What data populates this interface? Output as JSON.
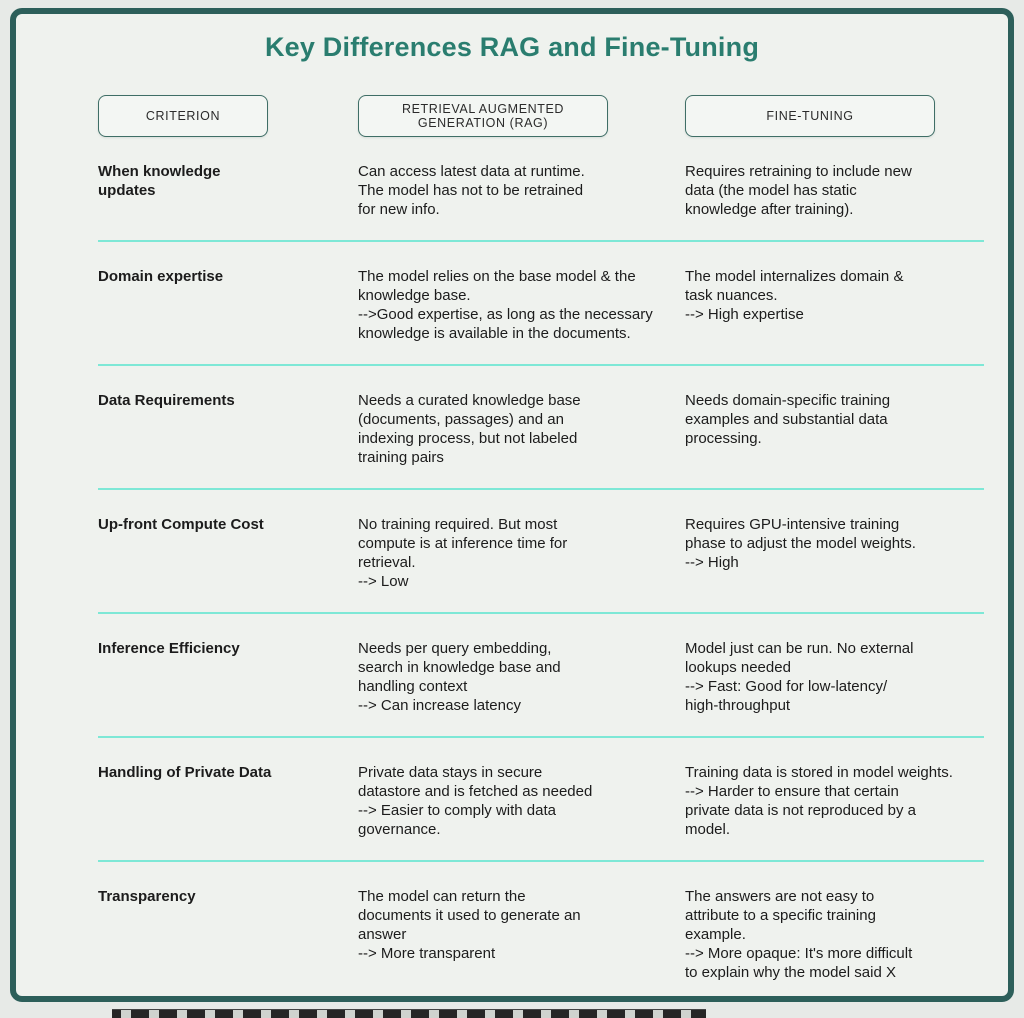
{
  "colors": {
    "border": "#2d5f5a",
    "background": "#eff2ee",
    "title": "#2a7d6f",
    "separator": "#7ee8d6",
    "header_border": "#3f6e66",
    "text": "#1c1c1c"
  },
  "title": "Key Differences RAG and Fine-Tuning",
  "table": {
    "headers": [
      "CRITERION",
      "RETRIEVAL AUGMENTED\nGENERATION (RAG)",
      "FINE-TUNING"
    ],
    "rows": [
      {
        "criterion": "When knowledge\nupdates",
        "rag": "Can access latest data at runtime.\nThe model has not to be retrained\nfor new info.",
        "fine_tuning": "Requires retraining to include new\ndata (the model has static\nknowledge after training)."
      },
      {
        "criterion": "Domain expertise",
        "rag": "The model relies on the base model & the\nknowledge base.\n-->Good expertise, as long as the necessary\nknowledge is available in the documents.",
        "fine_tuning": "The model internalizes domain &\ntask nuances.\n--> High expertise"
      },
      {
        "criterion": "Data Requirements",
        "rag": "Needs a curated knowledge base\n(documents, passages) and an\nindexing process, but not labeled\ntraining pairs",
        "fine_tuning": "Needs domain-specific training\nexamples and substantial data\nprocessing."
      },
      {
        "criterion": "Up-front Compute Cost",
        "rag": "No training required. But most\ncompute is at inference time for\nretrieval.\n--> Low",
        "fine_tuning": "Requires GPU-intensive training\nphase to adjust the model weights.\n--> High"
      },
      {
        "criterion": "Inference Efficiency",
        "rag": "Needs per query embedding,\nsearch in knowledge base and\nhandling context\n--> Can increase latency",
        "fine_tuning": "Model just can be run. No external\nlookups needed\n--> Fast: Good for low-latency/\nhigh-throughput"
      },
      {
        "criterion": "Handling of Private Data",
        "rag": "Private data stays in secure\ndatastore and is fetched as needed\n--> Easier to comply with data\ngovernance.",
        "fine_tuning": "Training data is stored in model weights.\n--> Harder to ensure that certain\nprivate data is not reproduced by a\nmodel."
      },
      {
        "criterion": "Transparency",
        "rag": "The model can return the\ndocuments it used to generate an\nanswer\n--> More transparent",
        "fine_tuning": "The answers are not easy to\nattribute to a specific training\nexample.\n--> More opaque: It's more difficult\nto explain why the model said X"
      }
    ]
  }
}
